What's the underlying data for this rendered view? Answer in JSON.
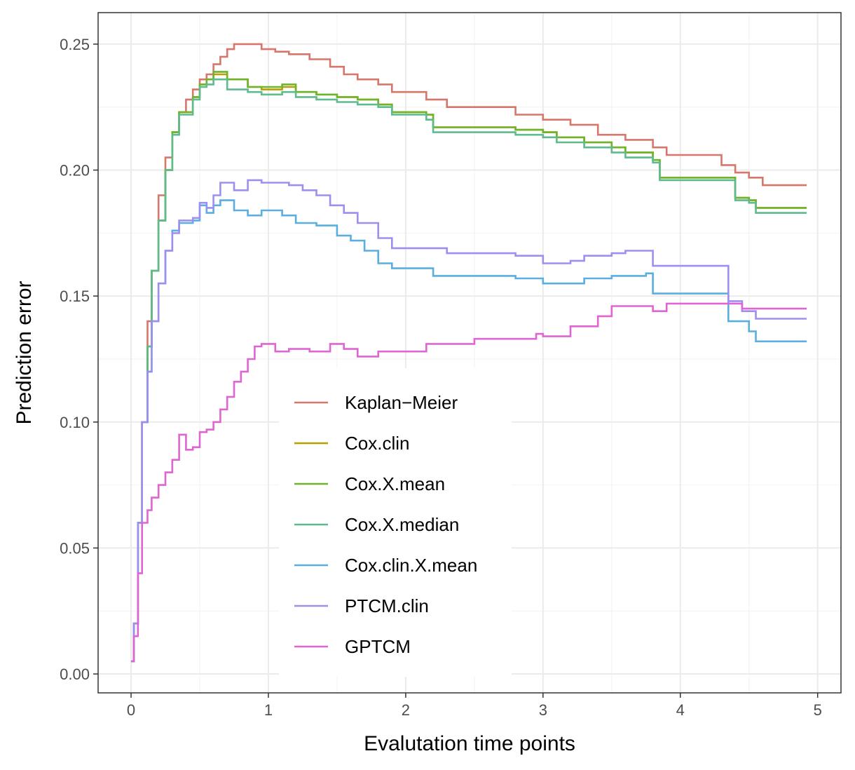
{
  "chart_data": {
    "type": "line",
    "title": "",
    "xlabel": "Evalutation time points",
    "ylabel": "Prediction error",
    "xlim": [
      -0.24,
      5.17
    ],
    "ylim": [
      -0.0075,
      0.2625
    ],
    "x_ticks": [
      "0",
      "1",
      "2",
      "3",
      "4",
      "5"
    ],
    "y_ticks": [
      "0.00",
      "0.05",
      "0.10",
      "0.15",
      "0.20",
      "0.25"
    ],
    "grid": true,
    "legend_position": "inside-center",
    "series": [
      {
        "name": "Kaplan−Meier",
        "color": "#D7766B",
        "points": [
          [
            0,
            0.005
          ],
          [
            0.02,
            0.02
          ],
          [
            0.05,
            0.06
          ],
          [
            0.08,
            0.1
          ],
          [
            0.12,
            0.14
          ],
          [
            0.15,
            0.16
          ],
          [
            0.2,
            0.19
          ],
          [
            0.25,
            0.205
          ],
          [
            0.3,
            0.215
          ],
          [
            0.35,
            0.223
          ],
          [
            0.4,
            0.228
          ],
          [
            0.45,
            0.232
          ],
          [
            0.5,
            0.236
          ],
          [
            0.55,
            0.238
          ],
          [
            0.6,
            0.242
          ],
          [
            0.65,
            0.245
          ],
          [
            0.7,
            0.248
          ],
          [
            0.75,
            0.25
          ],
          [
            0.85,
            0.25
          ],
          [
            0.95,
            0.248
          ],
          [
            1.05,
            0.247
          ],
          [
            1.15,
            0.246
          ],
          [
            1.3,
            0.244
          ],
          [
            1.45,
            0.241
          ],
          [
            1.55,
            0.238
          ],
          [
            1.65,
            0.236
          ],
          [
            1.8,
            0.234
          ],
          [
            1.9,
            0.231
          ],
          [
            2.0,
            0.231
          ],
          [
            2.15,
            0.228
          ],
          [
            2.3,
            0.225
          ],
          [
            2.5,
            0.225
          ],
          [
            2.8,
            0.222
          ],
          [
            3.0,
            0.22
          ],
          [
            3.2,
            0.218
          ],
          [
            3.4,
            0.214
          ],
          [
            3.6,
            0.212
          ],
          [
            3.8,
            0.209
          ],
          [
            3.9,
            0.206
          ],
          [
            4.2,
            0.206
          ],
          [
            4.3,
            0.202
          ],
          [
            4.4,
            0.199
          ],
          [
            4.5,
            0.197
          ],
          [
            4.6,
            0.194
          ],
          [
            4.92,
            0.194
          ]
        ]
      },
      {
        "name": "Cox.clin",
        "color": "#B79F00",
        "points": [
          [
            0,
            0.005
          ],
          [
            0.02,
            0.02
          ],
          [
            0.05,
            0.06
          ],
          [
            0.08,
            0.1
          ],
          [
            0.12,
            0.13
          ],
          [
            0.15,
            0.16
          ],
          [
            0.2,
            0.18
          ],
          [
            0.25,
            0.2
          ],
          [
            0.3,
            0.215
          ],
          [
            0.35,
            0.223
          ],
          [
            0.45,
            0.229
          ],
          [
            0.5,
            0.234
          ],
          [
            0.55,
            0.236
          ],
          [
            0.6,
            0.238
          ],
          [
            0.7,
            0.236
          ],
          [
            0.85,
            0.233
          ],
          [
            0.95,
            0.232
          ],
          [
            1.1,
            0.233
          ],
          [
            1.2,
            0.231
          ],
          [
            1.35,
            0.23
          ],
          [
            1.5,
            0.229
          ],
          [
            1.65,
            0.228
          ],
          [
            1.8,
            0.226
          ],
          [
            1.9,
            0.223
          ],
          [
            2.15,
            0.222
          ],
          [
            2.2,
            0.217
          ],
          [
            2.5,
            0.217
          ],
          [
            2.8,
            0.216
          ],
          [
            3.0,
            0.215
          ],
          [
            3.1,
            0.213
          ],
          [
            3.3,
            0.211
          ],
          [
            3.5,
            0.209
          ],
          [
            3.6,
            0.207
          ],
          [
            3.8,
            0.204
          ],
          [
            3.85,
            0.197
          ],
          [
            4.3,
            0.197
          ],
          [
            4.4,
            0.189
          ],
          [
            4.5,
            0.188
          ],
          [
            4.55,
            0.185
          ],
          [
            4.92,
            0.185
          ]
        ]
      },
      {
        "name": "Cox.X.mean",
        "color": "#6FB42C",
        "points": [
          [
            0,
            0.005
          ],
          [
            0.02,
            0.02
          ],
          [
            0.05,
            0.06
          ],
          [
            0.08,
            0.1
          ],
          [
            0.12,
            0.13
          ],
          [
            0.15,
            0.16
          ],
          [
            0.2,
            0.18
          ],
          [
            0.25,
            0.2
          ],
          [
            0.3,
            0.215
          ],
          [
            0.35,
            0.223
          ],
          [
            0.45,
            0.229
          ],
          [
            0.5,
            0.234
          ],
          [
            0.55,
            0.236
          ],
          [
            0.6,
            0.239
          ],
          [
            0.7,
            0.236
          ],
          [
            0.85,
            0.233
          ],
          [
            0.95,
            0.233
          ],
          [
            1.1,
            0.234
          ],
          [
            1.2,
            0.231
          ],
          [
            1.35,
            0.23
          ],
          [
            1.5,
            0.229
          ],
          [
            1.65,
            0.228
          ],
          [
            1.8,
            0.226
          ],
          [
            1.9,
            0.223
          ],
          [
            2.15,
            0.222
          ],
          [
            2.2,
            0.217
          ],
          [
            2.5,
            0.217
          ],
          [
            2.8,
            0.216
          ],
          [
            3.0,
            0.215
          ],
          [
            3.1,
            0.213
          ],
          [
            3.3,
            0.211
          ],
          [
            3.5,
            0.209
          ],
          [
            3.6,
            0.207
          ],
          [
            3.8,
            0.204
          ],
          [
            3.85,
            0.197
          ],
          [
            4.3,
            0.197
          ],
          [
            4.4,
            0.189
          ],
          [
            4.5,
            0.188
          ],
          [
            4.55,
            0.185
          ],
          [
            4.92,
            0.185
          ]
        ]
      },
      {
        "name": "Cox.X.median",
        "color": "#5EBB8E",
        "points": [
          [
            0,
            0.005
          ],
          [
            0.02,
            0.02
          ],
          [
            0.05,
            0.06
          ],
          [
            0.08,
            0.1
          ],
          [
            0.12,
            0.13
          ],
          [
            0.15,
            0.16
          ],
          [
            0.2,
            0.18
          ],
          [
            0.25,
            0.2
          ],
          [
            0.3,
            0.214
          ],
          [
            0.35,
            0.222
          ],
          [
            0.45,
            0.228
          ],
          [
            0.5,
            0.233
          ],
          [
            0.55,
            0.234
          ],
          [
            0.6,
            0.236
          ],
          [
            0.7,
            0.232
          ],
          [
            0.85,
            0.231
          ],
          [
            0.95,
            0.23
          ],
          [
            1.1,
            0.231
          ],
          [
            1.2,
            0.229
          ],
          [
            1.35,
            0.228
          ],
          [
            1.5,
            0.227
          ],
          [
            1.65,
            0.226
          ],
          [
            1.8,
            0.225
          ],
          [
            1.9,
            0.222
          ],
          [
            2.15,
            0.22
          ],
          [
            2.2,
            0.215
          ],
          [
            2.5,
            0.215
          ],
          [
            2.8,
            0.214
          ],
          [
            3.0,
            0.213
          ],
          [
            3.1,
            0.211
          ],
          [
            3.3,
            0.209
          ],
          [
            3.5,
            0.207
          ],
          [
            3.6,
            0.205
          ],
          [
            3.8,
            0.203
          ],
          [
            3.85,
            0.196
          ],
          [
            4.3,
            0.196
          ],
          [
            4.4,
            0.188
          ],
          [
            4.5,
            0.187
          ],
          [
            4.55,
            0.183
          ],
          [
            4.92,
            0.183
          ]
        ]
      },
      {
        "name": "Cox.clin.X.mean",
        "color": "#5AAEE0",
        "points": [
          [
            0,
            0.005
          ],
          [
            0.02,
            0.02
          ],
          [
            0.05,
            0.06
          ],
          [
            0.08,
            0.1
          ],
          [
            0.12,
            0.12
          ],
          [
            0.15,
            0.14
          ],
          [
            0.2,
            0.155
          ],
          [
            0.25,
            0.168
          ],
          [
            0.3,
            0.176
          ],
          [
            0.35,
            0.179
          ],
          [
            0.45,
            0.18
          ],
          [
            0.5,
            0.186
          ],
          [
            0.55,
            0.183
          ],
          [
            0.6,
            0.186
          ],
          [
            0.65,
            0.188
          ],
          [
            0.75,
            0.184
          ],
          [
            0.85,
            0.182
          ],
          [
            0.95,
            0.184
          ],
          [
            1.1,
            0.182
          ],
          [
            1.2,
            0.179
          ],
          [
            1.35,
            0.178
          ],
          [
            1.5,
            0.174
          ],
          [
            1.6,
            0.172
          ],
          [
            1.7,
            0.168
          ],
          [
            1.8,
            0.163
          ],
          [
            1.9,
            0.161
          ],
          [
            2.15,
            0.161
          ],
          [
            2.2,
            0.158
          ],
          [
            2.5,
            0.158
          ],
          [
            2.8,
            0.157
          ],
          [
            3.0,
            0.155
          ],
          [
            3.2,
            0.155
          ],
          [
            3.3,
            0.157
          ],
          [
            3.5,
            0.158
          ],
          [
            3.6,
            0.158
          ],
          [
            3.75,
            0.159
          ],
          [
            3.8,
            0.151
          ],
          [
            4.3,
            0.151
          ],
          [
            4.35,
            0.14
          ],
          [
            4.5,
            0.136
          ],
          [
            4.55,
            0.132
          ],
          [
            4.92,
            0.132
          ]
        ]
      },
      {
        "name": "PTCM.clin",
        "color": "#9D8FF0",
        "points": [
          [
            0,
            0.005
          ],
          [
            0.02,
            0.02
          ],
          [
            0.05,
            0.06
          ],
          [
            0.08,
            0.1
          ],
          [
            0.12,
            0.12
          ],
          [
            0.15,
            0.14
          ],
          [
            0.2,
            0.155
          ],
          [
            0.25,
            0.168
          ],
          [
            0.3,
            0.175
          ],
          [
            0.35,
            0.18
          ],
          [
            0.45,
            0.181
          ],
          [
            0.5,
            0.187
          ],
          [
            0.55,
            0.185
          ],
          [
            0.6,
            0.19
          ],
          [
            0.65,
            0.195
          ],
          [
            0.75,
            0.192
          ],
          [
            0.85,
            0.196
          ],
          [
            0.95,
            0.195
          ],
          [
            1.05,
            0.195
          ],
          [
            1.15,
            0.194
          ],
          [
            1.25,
            0.192
          ],
          [
            1.35,
            0.19
          ],
          [
            1.45,
            0.186
          ],
          [
            1.55,
            0.183
          ],
          [
            1.65,
            0.179
          ],
          [
            1.8,
            0.173
          ],
          [
            1.9,
            0.169
          ],
          [
            2.15,
            0.169
          ],
          [
            2.3,
            0.167
          ],
          [
            2.5,
            0.167
          ],
          [
            2.8,
            0.166
          ],
          [
            3.0,
            0.163
          ],
          [
            3.2,
            0.164
          ],
          [
            3.3,
            0.166
          ],
          [
            3.5,
            0.167
          ],
          [
            3.6,
            0.168
          ],
          [
            3.75,
            0.168
          ],
          [
            3.8,
            0.162
          ],
          [
            4.28,
            0.162
          ],
          [
            4.35,
            0.148
          ],
          [
            4.45,
            0.144
          ],
          [
            4.55,
            0.141
          ],
          [
            4.92,
            0.141
          ]
        ]
      },
      {
        "name": "GPTCM",
        "color": "#E064D2",
        "points": [
          [
            0,
            0.005
          ],
          [
            0.02,
            0.015
          ],
          [
            0.05,
            0.04
          ],
          [
            0.08,
            0.06
          ],
          [
            0.12,
            0.065
          ],
          [
            0.15,
            0.07
          ],
          [
            0.2,
            0.075
          ],
          [
            0.25,
            0.08
          ],
          [
            0.3,
            0.085
          ],
          [
            0.35,
            0.095
          ],
          [
            0.4,
            0.089
          ],
          [
            0.45,
            0.09
          ],
          [
            0.5,
            0.096
          ],
          [
            0.55,
            0.097
          ],
          [
            0.6,
            0.1
          ],
          [
            0.65,
            0.105
          ],
          [
            0.7,
            0.11
          ],
          [
            0.75,
            0.116
          ],
          [
            0.8,
            0.12
          ],
          [
            0.85,
            0.125
          ],
          [
            0.9,
            0.13
          ],
          [
            0.95,
            0.131
          ],
          [
            1.05,
            0.128
          ],
          [
            1.15,
            0.129
          ],
          [
            1.3,
            0.128
          ],
          [
            1.45,
            0.131
          ],
          [
            1.55,
            0.129
          ],
          [
            1.65,
            0.126
          ],
          [
            1.8,
            0.128
          ],
          [
            1.9,
            0.128
          ],
          [
            2.15,
            0.131
          ],
          [
            2.5,
            0.133
          ],
          [
            2.8,
            0.133
          ],
          [
            2.95,
            0.135
          ],
          [
            3.0,
            0.134
          ],
          [
            3.2,
            0.138
          ],
          [
            3.4,
            0.142
          ],
          [
            3.5,
            0.146
          ],
          [
            3.7,
            0.146
          ],
          [
            3.8,
            0.144
          ],
          [
            3.9,
            0.147
          ],
          [
            4.3,
            0.147
          ],
          [
            4.45,
            0.145
          ],
          [
            4.92,
            0.145
          ]
        ]
      }
    ]
  }
}
